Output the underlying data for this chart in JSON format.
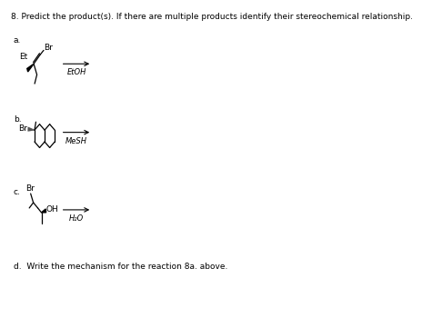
{
  "title": "8. Predict the product(s). If there are multiple products identify their stereochemical relationship.",
  "background_color": "#ffffff",
  "label_a": "a.",
  "label_b": "b.",
  "label_c": "c.",
  "reagent_a": "EtOH",
  "reagent_b": "MeSH",
  "reagent_c": "H₂O",
  "text_d": "d.  Write the mechanism for the reaction 8a. above.",
  "label_Et": "Et",
  "label_Br": "Br",
  "label_OH": "OH",
  "line_color": "#000000",
  "text_color": "#000000",
  "title_fontsize": 6.5,
  "label_fontsize": 6.5,
  "reagent_fontsize": 6.0,
  "sub_fontsize": 5.5
}
